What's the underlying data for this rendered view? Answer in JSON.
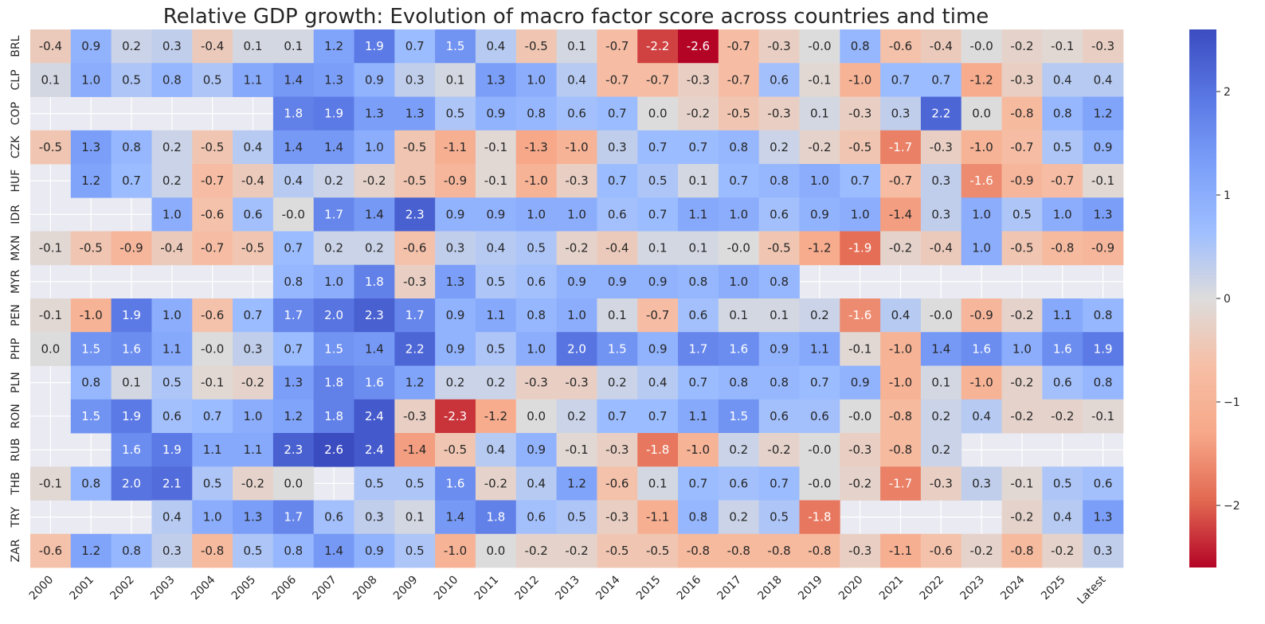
{
  "chart_data": {
    "type": "heatmap",
    "title": "Relative GDP growth: Evolution of macro factor score across countries and time",
    "xlabel": "",
    "ylabel": "",
    "colormap": "coolwarm_r",
    "vmin": -2.6,
    "vmax": 2.6,
    "colorbar_ticks": [
      2,
      1,
      0,
      -1,
      -2
    ],
    "colorbar_tick_labels": [
      "2",
      "1",
      "0",
      "−1",
      "−2"
    ],
    "columns": [
      "2000",
      "2001",
      "2002",
      "2003",
      "2004",
      "2005",
      "2006",
      "2007",
      "2008",
      "2009",
      "2010",
      "2011",
      "2012",
      "2013",
      "2014",
      "2015",
      "2016",
      "2017",
      "2018",
      "2019",
      "2020",
      "2021",
      "2022",
      "2023",
      "2024",
      "2025",
      "Latest"
    ],
    "rows": [
      "BRL",
      "CLP",
      "COP",
      "CZK",
      "HUF",
      "IDR",
      "MXN",
      "MYR",
      "PEN",
      "PHP",
      "PLN",
      "RON",
      "RUB",
      "THB",
      "TRY",
      "ZAR"
    ],
    "values": [
      [
        -0.4,
        0.9,
        0.2,
        0.3,
        -0.4,
        0.1,
        0.1,
        1.2,
        1.9,
        0.7,
        1.5,
        0.4,
        -0.5,
        0.1,
        -0.7,
        -2.2,
        -2.6,
        -0.7,
        -0.3,
        -0.0,
        0.8,
        -0.6,
        -0.4,
        -0.0,
        -0.2,
        -0.1,
        -0.3
      ],
      [
        0.1,
        1.0,
        0.5,
        0.8,
        0.5,
        1.1,
        1.4,
        1.3,
        0.9,
        0.3,
        0.1,
        1.3,
        1.0,
        0.4,
        -0.7,
        -0.7,
        -0.3,
        -0.7,
        0.6,
        -0.1,
        -1.0,
        0.7,
        0.7,
        -1.2,
        -0.3,
        0.4,
        0.4
      ],
      [
        null,
        null,
        null,
        null,
        null,
        null,
        1.8,
        1.9,
        1.3,
        1.3,
        0.5,
        0.9,
        0.8,
        0.6,
        0.7,
        0.0,
        -0.2,
        -0.5,
        -0.3,
        0.1,
        -0.3,
        0.3,
        2.2,
        0.0,
        -0.8,
        0.8,
        1.2
      ],
      [
        -0.5,
        1.3,
        0.8,
        0.2,
        -0.5,
        0.4,
        1.4,
        1.4,
        1.0,
        -0.5,
        -1.1,
        -0.1,
        -1.3,
        -1.0,
        0.3,
        0.7,
        0.7,
        0.8,
        0.2,
        -0.2,
        -0.5,
        -1.7,
        -0.3,
        -1.0,
        -0.7,
        0.5,
        0.9
      ],
      [
        null,
        1.2,
        0.7,
        0.2,
        -0.7,
        -0.4,
        0.4,
        0.2,
        -0.2,
        -0.5,
        -0.9,
        -0.1,
        -1.0,
        -0.3,
        0.7,
        0.5,
        0.1,
        0.7,
        0.8,
        1.0,
        0.7,
        -0.7,
        0.3,
        -1.6,
        -0.9,
        -0.7,
        -0.1
      ],
      [
        null,
        null,
        null,
        1.0,
        -0.6,
        0.6,
        -0.0,
        1.7,
        1.4,
        2.3,
        0.9,
        0.9,
        1.0,
        1.0,
        0.6,
        0.7,
        1.1,
        1.0,
        0.6,
        0.9,
        1.0,
        -1.4,
        0.3,
        1.0,
        0.5,
        1.0,
        1.3
      ],
      [
        -0.1,
        -0.5,
        -0.9,
        -0.4,
        -0.7,
        -0.5,
        0.7,
        0.2,
        0.2,
        -0.6,
        0.3,
        0.4,
        0.5,
        -0.2,
        -0.4,
        0.1,
        0.1,
        -0.0,
        -0.5,
        -1.2,
        -1.9,
        -0.2,
        -0.4,
        1.0,
        -0.5,
        -0.8,
        -0.9
      ],
      [
        null,
        null,
        null,
        null,
        null,
        null,
        0.8,
        1.0,
        1.8,
        -0.3,
        1.3,
        0.5,
        0.6,
        0.9,
        0.9,
        0.9,
        0.8,
        1.0,
        0.8,
        null,
        null,
        null,
        null,
        null,
        null,
        null,
        null
      ],
      [
        -0.1,
        -1.0,
        1.9,
        1.0,
        -0.6,
        0.7,
        1.7,
        2.0,
        2.3,
        1.7,
        0.9,
        1.1,
        0.8,
        1.0,
        0.1,
        -0.7,
        0.6,
        0.1,
        0.1,
        0.2,
        -1.6,
        0.4,
        -0.0,
        -0.9,
        -0.2,
        1.1,
        0.8
      ],
      [
        0.0,
        1.5,
        1.6,
        1.1,
        -0.0,
        0.3,
        0.7,
        1.5,
        1.4,
        2.2,
        0.9,
        0.5,
        1.0,
        2.0,
        1.5,
        0.9,
        1.7,
        1.6,
        0.9,
        1.1,
        -0.1,
        -1.0,
        1.4,
        1.6,
        1.0,
        1.6,
        1.9
      ],
      [
        null,
        0.8,
        0.1,
        0.5,
        -0.1,
        -0.2,
        1.3,
        1.8,
        1.6,
        1.2,
        0.2,
        0.2,
        -0.3,
        -0.3,
        0.2,
        0.4,
        0.7,
        0.8,
        0.8,
        0.7,
        0.9,
        -1.0,
        0.1,
        -1.0,
        -0.2,
        0.6,
        0.8
      ],
      [
        null,
        1.5,
        1.9,
        0.6,
        0.7,
        1.0,
        1.2,
        1.8,
        2.4,
        -0.3,
        -2.3,
        -1.2,
        0.0,
        0.2,
        0.7,
        0.7,
        1.1,
        1.5,
        0.6,
        0.6,
        -0.0,
        -0.8,
        0.2,
        0.4,
        -0.2,
        -0.2,
        -0.1
      ],
      [
        null,
        null,
        1.6,
        1.9,
        1.1,
        1.1,
        2.3,
        2.6,
        2.4,
        -1.4,
        -0.5,
        0.4,
        0.9,
        -0.1,
        -0.3,
        -1.8,
        -1.0,
        0.2,
        -0.2,
        -0.0,
        -0.3,
        -0.8,
        0.2,
        null,
        null,
        null,
        null
      ],
      [
        -0.1,
        0.8,
        2.0,
        2.1,
        0.5,
        -0.2,
        0.0,
        null,
        0.5,
        0.5,
        1.6,
        -0.2,
        0.4,
        1.2,
        -0.6,
        0.1,
        0.7,
        0.6,
        0.7,
        -0.0,
        -0.2,
        -1.7,
        -0.3,
        0.3,
        -0.1,
        0.5,
        0.6
      ],
      [
        null,
        null,
        null,
        0.4,
        1.0,
        1.3,
        1.7,
        0.6,
        0.3,
        0.1,
        1.4,
        1.8,
        0.6,
        0.5,
        -0.3,
        -1.1,
        0.8,
        0.2,
        0.5,
        -1.8,
        null,
        null,
        null,
        null,
        -0.2,
        0.4,
        1.3
      ],
      [
        -0.6,
        1.2,
        0.8,
        0.3,
        -0.8,
        0.5,
        0.8,
        1.4,
        0.9,
        0.5,
        -1.0,
        0.0,
        -0.2,
        -0.2,
        -0.5,
        -0.5,
        -0.8,
        -0.8,
        -0.8,
        -0.8,
        -0.3,
        -1.1,
        -0.6,
        -0.2,
        -0.8,
        -0.2,
        0.3
      ]
    ]
  }
}
